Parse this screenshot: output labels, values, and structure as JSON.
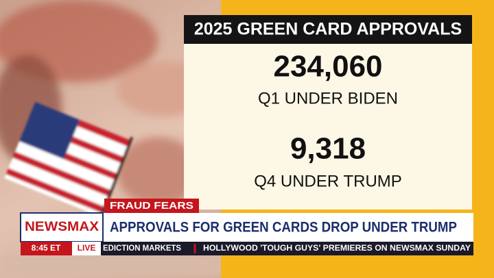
{
  "graphic": {
    "title": "2025 GREEN CARD APPROVALS",
    "stats": [
      {
        "value": "234,060",
        "label": "Q1 UNDER BIDEN"
      },
      {
        "value": "9,318",
        "label": "Q4 UNDER TRUMP"
      }
    ]
  },
  "lower_third": {
    "tag": "FRAUD FEARS",
    "logo": "NEWSMAX",
    "headline": "APPROVALS FOR GREEN CARDS DROP UNDER TRUMP",
    "time": "8:45 ET",
    "live": "LIVE",
    "ticker": [
      "EDICTION MARKETS",
      "HOLLYWOOD 'TOUGH GUYS' PREMIERES ON NEWSMAX SUNDAY"
    ]
  }
}
